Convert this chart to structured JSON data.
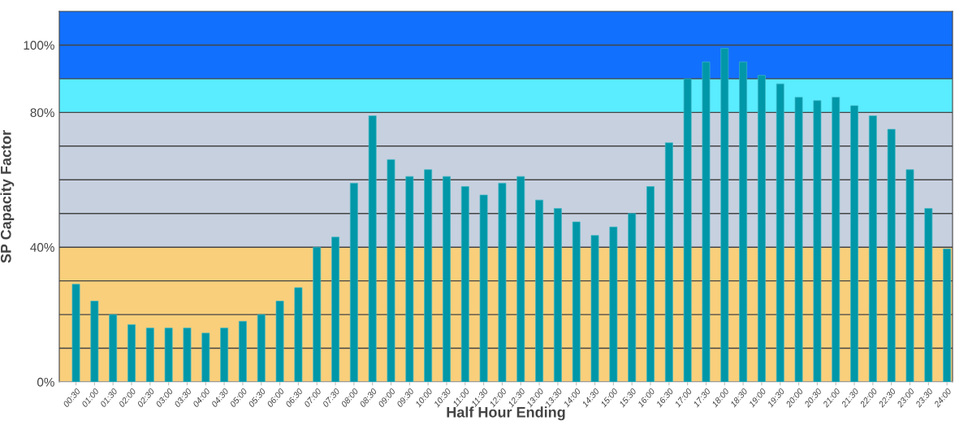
{
  "chart_data": {
    "type": "bar",
    "xlabel": "Half Hour Ending",
    "ylabel": "SP Capacity Factor",
    "categories": [
      "00:30",
      "01:00",
      "01:30",
      "02:00",
      "02:30",
      "03:00",
      "03:30",
      "04:00",
      "04:30",
      "05:00",
      "05:30",
      "06:00",
      "06:30",
      "07:00",
      "07:30",
      "08:00",
      "08:30",
      "09:00",
      "09:30",
      "10:00",
      "10:30",
      "11:00",
      "11:30",
      "12:00",
      "12:30",
      "13:00",
      "13:30",
      "14:00",
      "14:30",
      "15:00",
      "15:30",
      "16:00",
      "16:30",
      "17:00",
      "17:30",
      "18:00",
      "18:30",
      "19:00",
      "19:30",
      "20:00",
      "20:30",
      "21:00",
      "21:30",
      "22:00",
      "22:30",
      "23:00",
      "23:30",
      "24:00"
    ],
    "values": [
      29,
      24,
      20,
      17,
      16,
      16,
      16,
      14.5,
      16,
      18,
      20,
      24,
      28,
      40,
      43,
      59,
      79,
      66,
      61,
      63,
      61,
      58,
      55.5,
      59,
      61,
      54,
      51.5,
      47.5,
      43.5,
      46,
      50,
      58,
      71,
      90,
      95,
      99,
      95,
      91,
      88.5,
      84.5,
      83.5,
      84.5,
      82,
      79,
      75,
      63,
      51.5,
      39.5
    ],
    "color": "#0097a8",
    "ylim": [
      0,
      110
    ],
    "yticks": [
      {
        "value": 0,
        "label": "0%"
      },
      {
        "value": 10,
        "label": null
      },
      {
        "value": 20,
        "label": null
      },
      {
        "value": 30,
        "label": null
      },
      {
        "value": 40,
        "label": "40%"
      },
      {
        "value": 50,
        "label": null
      },
      {
        "value": 60,
        "label": null
      },
      {
        "value": 70,
        "label": null
      },
      {
        "value": 80,
        "label": "80%"
      },
      {
        "value": 90,
        "label": null
      },
      {
        "value": 100,
        "label": "100%"
      }
    ],
    "grid": "y",
    "bands": [
      {
        "axis": "y",
        "from": 0,
        "to": 40,
        "color": "#f9cf7b"
      },
      {
        "axis": "y",
        "from": 40,
        "to": 80,
        "color": "#c7d0df"
      },
      {
        "axis": "y",
        "from": 80,
        "to": 90,
        "color": "#5aecff"
      },
      {
        "axis": "y",
        "from": 90,
        "to": 110,
        "color": "#1270fe"
      }
    ]
  }
}
